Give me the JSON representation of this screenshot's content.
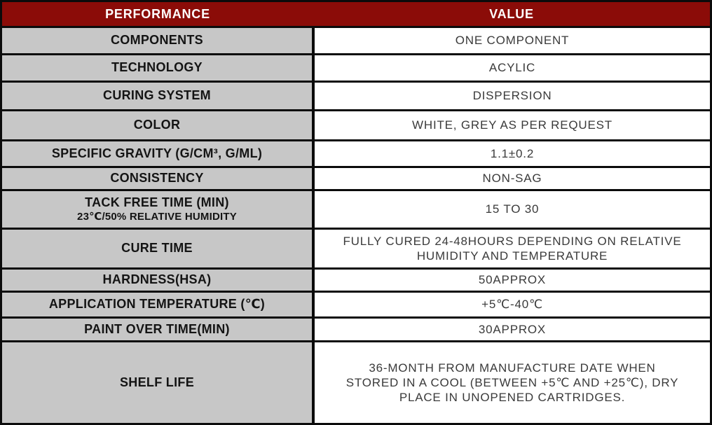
{
  "table": {
    "header": {
      "performance": "PERFORMANCE",
      "value": "VALUE"
    },
    "rows": [
      {
        "performance": "COMPONENTS",
        "value": "ONE COMPONENT"
      },
      {
        "performance": "TECHNOLOGY",
        "value": "ACYLIC"
      },
      {
        "performance": "CURING SYSTEM",
        "value": "DISPERSION"
      },
      {
        "performance": "COLOR",
        "value": "WHITE, GREY AS PER REQUEST"
      },
      {
        "performance": "SPECIFIC GRAVITY (G/CM³, G/ML)",
        "value": "1.1±0.2"
      },
      {
        "performance": "CONSISTENCY",
        "value": "NON-SAG"
      },
      {
        "performance": "TACK FREE TIME (MIN)",
        "performance_sub": "23℃/50% RELATIVE HUMIDITY",
        "value": "15 TO 30"
      },
      {
        "performance": "CURE TIME",
        "value": "FULLY CURED 24-48HOURS DEPENDING ON RELATIVE\nHUMIDITY AND TEMPERATURE"
      },
      {
        "performance": "HARDNESS(HSA)",
        "value": "50APPROX"
      },
      {
        "performance": "APPLICATION TEMPERATURE (℃)",
        "value": "+5℃-40℃"
      },
      {
        "performance": "PAINT OVER TIME(MIN)",
        "value": "30APPROX"
      },
      {
        "performance": "SHELF LIFE",
        "value": "36-MONTH FROM MANUFACTURE DATE WHEN\nSTORED IN A COOL (BETWEEN +5℃ AND +25℃), DRY\nPLACE IN UNOPENED CARTRIDGES."
      }
    ]
  },
  "colors": {
    "header_bg": "#8B0C08",
    "header_text": "#FFFFFF",
    "label_bg": "#C7C7C7",
    "value_bg": "#FFFFFF",
    "border": "#0B0B0B"
  }
}
